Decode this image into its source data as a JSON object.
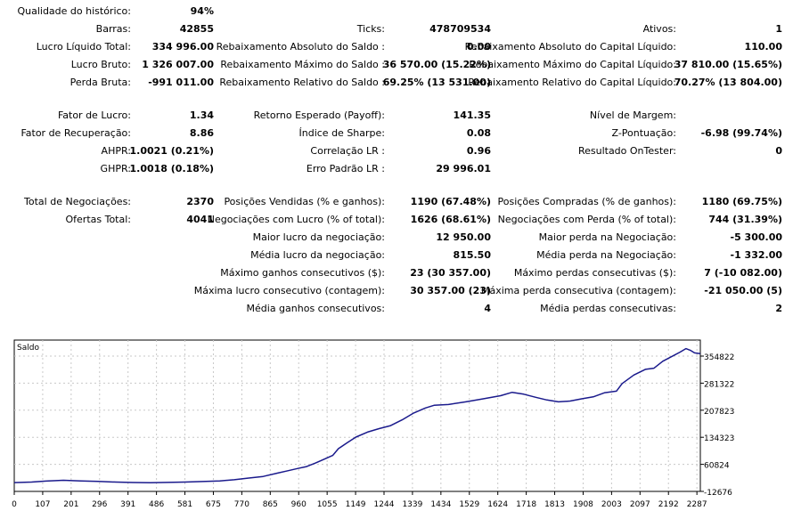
{
  "report": {
    "rows": [
      {
        "cells": [
          {
            "label": "Qualidade do histórico:",
            "value": "94%"
          }
        ]
      },
      {
        "cells": [
          {
            "label": "Barras:",
            "value": "42855"
          },
          {
            "label": "Ticks:",
            "value": "478709534"
          },
          {
            "label": "Ativos:",
            "value": "1"
          }
        ]
      },
      {
        "cells": [
          {
            "label": "Lucro Líquido Total:",
            "value": "334 996.00"
          },
          {
            "label": "Rebaixamento Absoluto do Saldo :",
            "value": "0.00"
          },
          {
            "label": "Rebaixamento Absoluto do Capital Líquido:",
            "value": "110.00"
          }
        ]
      },
      {
        "cells": [
          {
            "label": "Lucro Bruto:",
            "value": "1 326 007.00"
          },
          {
            "label": "Rebaixamento Máximo do Saldo :",
            "value": "36 570.00 (15.22%)"
          },
          {
            "label": "Rebaixamento Máximo do Capital Líquido:",
            "value": "37 810.00 (15.65%)"
          }
        ]
      },
      {
        "cells": [
          {
            "label": "Perda Bruta:",
            "value": "-991 011.00"
          },
          {
            "label": "Rebaixamento Relativo do Saldo :",
            "value": "69.25% (13 531.00)"
          },
          {
            "label": "Rebaixamento Relativo do Capital Líquido:",
            "value": "70.27% (13 804.00)"
          }
        ]
      },
      {
        "cells": []
      },
      {
        "cells": [
          {
            "label": "Fator de Lucro:",
            "value": "1.34"
          },
          {
            "label": "Retorno Esperado (Payoff):",
            "value": "141.35"
          },
          {
            "label": "Nível de Margem:",
            "value": ""
          }
        ]
      },
      {
        "cells": [
          {
            "label": "Fator de Recuperação:",
            "value": "8.86"
          },
          {
            "label": "Índice de Sharpe:",
            "value": "0.08"
          },
          {
            "label": "Z-Pontuação:",
            "value": "-6.98 (99.74%)"
          }
        ]
      },
      {
        "cells": [
          {
            "label": "AHPR:",
            "value": "1.0021 (0.21%)"
          },
          {
            "label": "Correlação LR :",
            "value": "0.96"
          },
          {
            "label": "Resultado OnTester:",
            "value": "0"
          }
        ]
      },
      {
        "cells": [
          {
            "label": "GHPR:",
            "value": "1.0018 (0.18%)"
          },
          {
            "label": "Erro Padrão LR :",
            "value": "29 996.01"
          }
        ]
      },
      {
        "cells": []
      },
      {
        "cells": [
          {
            "label": "Total de Negociações:",
            "value": "2370"
          },
          {
            "label": "Posições Vendidas (% e ganhos):",
            "value": "1190 (67.48%)"
          },
          {
            "label": "Posições Compradas (% de ganhos):",
            "value": "1180 (69.75%)"
          }
        ]
      },
      {
        "cells": [
          {
            "label": "Ofertas Total:",
            "value": "4041"
          },
          {
            "label": "Negociações com Lucro (% of total):",
            "value": "1626 (68.61%)"
          },
          {
            "label": "Negociações com Perda (% of total):",
            "value": "744 (31.39%)"
          }
        ]
      },
      {
        "cells": [
          {
            "label": "",
            "value": ""
          },
          {
            "label": "Maior lucro da negociação:",
            "value": "12 950.00"
          },
          {
            "label": "Maior perda na Negociação:",
            "value": "-5 300.00"
          }
        ]
      },
      {
        "cells": [
          {
            "label": "",
            "value": ""
          },
          {
            "label": "Média lucro da negociação:",
            "value": "815.50"
          },
          {
            "label": "Média perda na Negociação:",
            "value": "-1 332.00"
          }
        ]
      },
      {
        "cells": [
          {
            "label": "",
            "value": ""
          },
          {
            "label": "Máximo ganhos consecutivos ($):",
            "value": "23 (30 357.00)"
          },
          {
            "label": "Máximo perdas consecutivas ($):",
            "value": "7 (-10 082.00)"
          }
        ]
      },
      {
        "cells": [
          {
            "label": "",
            "value": ""
          },
          {
            "label": "Máxima lucro consecutivo (contagem):",
            "value": "30 357.00 (23)"
          },
          {
            "label": "Máxima perda consecutiva (contagem):",
            "value": "-21 050.00 (5)"
          }
        ]
      },
      {
        "cells": [
          {
            "label": "",
            "value": ""
          },
          {
            "label": "Média ganhos consecutivos:",
            "value": "4"
          },
          {
            "label": "Média perdas consecutivas:",
            "value": "2"
          }
        ]
      }
    ]
  },
  "chart_data": {
    "type": "line",
    "series": [
      {
        "name": "Saldo",
        "color": "#1a1a8c",
        "points": [
          [
            0,
            1000
          ],
          [
            60,
            2500
          ],
          [
            110,
            5000
          ],
          [
            170,
            7000
          ],
          [
            230,
            5500
          ],
          [
            290,
            4000
          ],
          [
            350,
            2500
          ],
          [
            410,
            1200
          ],
          [
            470,
            800
          ],
          [
            530,
            1500
          ],
          [
            590,
            2500
          ],
          [
            650,
            3800
          ],
          [
            710,
            5500
          ],
          [
            760,
            8500
          ],
          [
            810,
            13000
          ],
          [
            860,
            17000
          ],
          [
            910,
            26000
          ],
          [
            940,
            31000
          ],
          [
            980,
            38000
          ],
          [
            1010,
            43000
          ],
          [
            1040,
            52000
          ],
          [
            1070,
            62000
          ],
          [
            1100,
            72000
          ],
          [
            1120,
            90000
          ],
          [
            1150,
            105000
          ],
          [
            1180,
            120000
          ],
          [
            1220,
            133000
          ],
          [
            1260,
            142000
          ],
          [
            1300,
            150000
          ],
          [
            1340,
            165000
          ],
          [
            1380,
            183000
          ],
          [
            1420,
            196000
          ],
          [
            1450,
            203000
          ],
          [
            1500,
            205000
          ],
          [
            1560,
            212000
          ],
          [
            1620,
            220000
          ],
          [
            1680,
            228000
          ],
          [
            1720,
            237000
          ],
          [
            1760,
            232000
          ],
          [
            1800,
            224000
          ],
          [
            1840,
            217000
          ],
          [
            1880,
            212000
          ],
          [
            1920,
            214000
          ],
          [
            1960,
            220000
          ],
          [
            2000,
            225000
          ],
          [
            2040,
            236000
          ],
          [
            2080,
            240000
          ],
          [
            2100,
            260000
          ],
          [
            2140,
            282000
          ],
          [
            2180,
            297000
          ],
          [
            2210,
            300000
          ],
          [
            2240,
            318000
          ],
          [
            2270,
            330000
          ],
          [
            2300,
            342000
          ],
          [
            2320,
            351000
          ],
          [
            2335,
            347000
          ],
          [
            2350,
            340000
          ],
          [
            2370,
            338000
          ]
        ]
      }
    ],
    "x_ticks": [
      "0",
      "107",
      "201",
      "296",
      "391",
      "486",
      "581",
      "675",
      "770",
      "865",
      "960",
      "1055",
      "1149",
      "1244",
      "1339",
      "1434",
      "1529",
      "1624",
      "1718",
      "1813",
      "1908",
      "2003",
      "2097",
      "2192",
      "2287"
    ],
    "y_ticks": [
      "354822",
      "281322",
      "207823",
      "134323",
      "60824",
      "-12676"
    ],
    "xlim": [
      0,
      2370
    ],
    "ylim": [
      -12676,
      354822
    ]
  }
}
